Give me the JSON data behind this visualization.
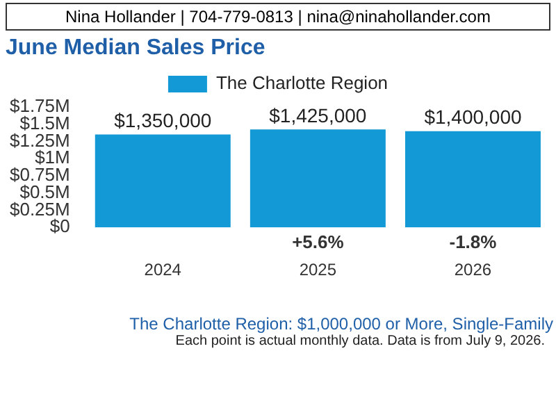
{
  "chart_data": {
    "type": "bar",
    "title": "June Median Sales Price",
    "subtitle": "The Charlotte Region: $1,000,000 or More, Single-Family",
    "categories": [
      "2024",
      "2025",
      "2026"
    ],
    "series": [
      {
        "name": "The Charlotte Region",
        "color": "#139ad6",
        "values": [
          1350000,
          1425000,
          1400000
        ],
        "value_labels": [
          "$1,350,000",
          "$1,425,000",
          "$1,400,000"
        ]
      }
    ],
    "ylim": [
      0,
      1750000
    ],
    "yticks": [
      {
        "value": 0,
        "label": "$0"
      },
      {
        "value": 250000,
        "label": "$0.25M"
      },
      {
        "value": 500000,
        "label": "$0.5M"
      },
      {
        "value": 750000,
        "label": "$0.75M"
      },
      {
        "value": 1000000,
        "label": "$1M"
      },
      {
        "value": 1250000,
        "label": "$1.25M"
      },
      {
        "value": 1500000,
        "label": "$1.5M"
      },
      {
        "value": 1750000,
        "label": "$1.75M"
      }
    ],
    "grid": false,
    "legend": "top",
    "annotations": [
      "Nina Hollander | 704-779-0813 | nina@ninahollander.com",
      "+5.6%",
      "-1.8%",
      "Each point is actual monthly data. Data is from July 9, 2026."
    ]
  }
}
